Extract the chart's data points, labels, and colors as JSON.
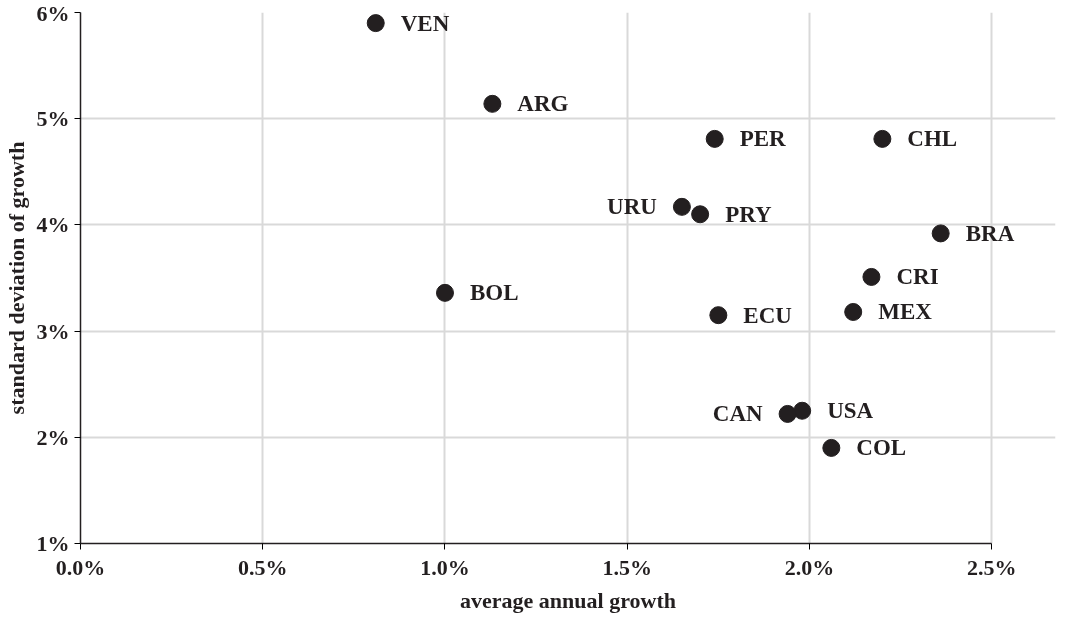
{
  "chart_data": {
    "type": "scatter",
    "xlabel": "average annual growth",
    "ylabel": "standard deviation of growth",
    "series": [
      {
        "name": "VEN",
        "color": "#231f20",
        "x": [
          0.81
        ],
        "values": [
          5.9
        ]
      },
      {
        "name": "ARG",
        "color": "#231f20",
        "x": [
          1.13
        ],
        "values": [
          5.14
        ]
      },
      {
        "name": "PER",
        "color": "#231f20",
        "x": [
          1.74
        ],
        "values": [
          4.81
        ]
      },
      {
        "name": "CHL",
        "color": "#231f20",
        "x": [
          2.2
        ],
        "values": [
          4.81
        ]
      },
      {
        "name": "URU",
        "color": "#231f20",
        "x": [
          1.65
        ],
        "values": [
          4.17
        ]
      },
      {
        "name": "PRY",
        "color": "#231f20",
        "x": [
          1.7
        ],
        "values": [
          4.1
        ]
      },
      {
        "name": "BRA",
        "color": "#231f20",
        "x": [
          2.36
        ],
        "values": [
          3.92
        ]
      },
      {
        "name": "CRI",
        "color": "#231f20",
        "x": [
          2.17
        ],
        "values": [
          3.51
        ]
      },
      {
        "name": "BOL",
        "color": "#231f20",
        "x": [
          1.0
        ],
        "values": [
          3.36
        ]
      },
      {
        "name": "MEX",
        "color": "#231f20",
        "x": [
          2.12
        ],
        "values": [
          3.18
        ]
      },
      {
        "name": "ECU",
        "color": "#231f20",
        "x": [
          1.75
        ],
        "values": [
          3.15
        ]
      },
      {
        "name": "USA",
        "color": "#231f20",
        "x": [
          1.98
        ],
        "values": [
          2.25
        ]
      },
      {
        "name": "CAN",
        "color": "#231f20",
        "x": [
          1.94
        ],
        "values": [
          2.22
        ]
      },
      {
        "name": "COL",
        "color": "#231f20",
        "x": [
          2.06
        ],
        "values": [
          1.9
        ]
      }
    ],
    "xlim": [
      0,
      2.5
    ],
    "ylim": [
      1,
      6
    ],
    "xticks": [
      {
        "value": 0,
        "label": "0.0%"
      },
      {
        "value": 0.5,
        "label": "0.5%"
      },
      {
        "value": 1,
        "label": "1.0%"
      },
      {
        "value": 1.5,
        "label": "1.5%"
      },
      {
        "value": 2,
        "label": "2.0%"
      },
      {
        "value": 2.5,
        "label": "2.5%"
      }
    ],
    "yticks": [
      {
        "value": 1,
        "label": "1%"
      },
      {
        "value": 2,
        "label": "2%"
      },
      {
        "value": 3,
        "label": "3%"
      },
      {
        "value": 4,
        "label": "4%"
      },
      {
        "value": 5,
        "label": "5%"
      },
      {
        "value": 6,
        "label": "6%"
      }
    ],
    "grid": true,
    "marker": "circle"
  }
}
